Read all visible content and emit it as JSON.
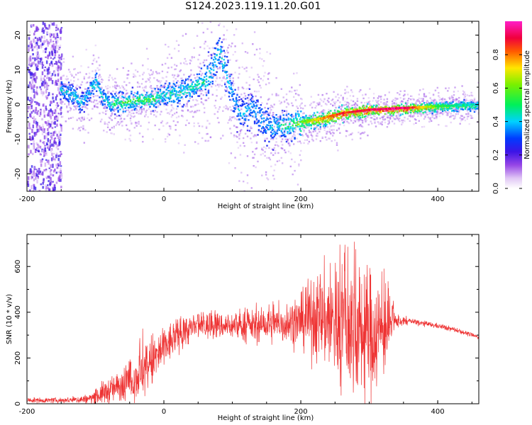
{
  "title": "S124.2023.119.11.20.G01",
  "colors": {
    "snr_line": "#ee3333",
    "axis": "#000000",
    "background": "#ffffff"
  },
  "chart_data": [
    {
      "type": "heatmap",
      "xlabel": "Height of straight line (km)",
      "ylabel": "Frequency (Hz)",
      "xlim": [
        -200,
        460
      ],
      "ylim": [
        -25,
        24
      ],
      "x_ticks": [
        -200,
        0,
        200,
        400
      ],
      "y_ticks": [
        20,
        10,
        0,
        -10,
        -20
      ],
      "colorbar": {
        "label": "Normalized spectral amplitude",
        "range": [
          0,
          1
        ],
        "ticks": [
          "0.0",
          "0.2",
          "0.4",
          "0.6",
          "0.8"
        ],
        "colormap": "white-violet-blue-cyan-green-yellow-red-pink"
      },
      "ridge": {
        "x": [
          -150,
          -130,
          -120,
          -110,
          -100,
          -90,
          -80,
          -60,
          -40,
          -20,
          0,
          20,
          40,
          60,
          70,
          80,
          90,
          100,
          110,
          130,
          150,
          180,
          200,
          230,
          260,
          300,
          350,
          400,
          460
        ],
        "y": [
          4.5,
          2.5,
          0.5,
          4,
          7,
          2,
          0.5,
          0.8,
          1.5,
          1.5,
          3,
          3.5,
          5,
          7,
          10,
          16,
          9,
          3,
          -3,
          -1,
          -6,
          -6,
          -5,
          -4,
          -2.5,
          -1.5,
          -1,
          -0.5,
          0
        ],
        "amplitude": [
          0.3,
          0.3,
          0.3,
          0.3,
          0.35,
          0.3,
          0.35,
          0.45,
          0.45,
          0.45,
          0.35,
          0.35,
          0.35,
          0.35,
          0.3,
          0.3,
          0.3,
          0.25,
          0.25,
          0.25,
          0.25,
          0.4,
          0.55,
          0.75,
          0.85,
          0.9,
          0.95,
          0.55,
          0.4
        ]
      },
      "noise_band": {
        "x_range": [
          -200,
          -150
        ],
        "note_type": "broadband scatter"
      }
    },
    {
      "type": "line",
      "xlabel": "Height of straight line (km)",
      "ylabel": "SNR (10 * v/v)",
      "xlim": [
        -200,
        460
      ],
      "ylim": [
        0,
        740
      ],
      "x_ticks": [
        -200,
        0,
        200,
        400
      ],
      "y_ticks": [
        0,
        200,
        400,
        600
      ],
      "envelope": {
        "x": [
          -200,
          -150,
          -110,
          -90,
          -60,
          -40,
          -30,
          -20,
          0,
          20,
          40,
          60,
          100,
          140,
          180,
          200,
          230,
          260,
          300,
          320,
          340,
          360,
          400,
          430,
          460
        ],
        "mean": [
          15,
          15,
          20,
          45,
          80,
          120,
          140,
          175,
          240,
          300,
          330,
          340,
          340,
          340,
          350,
          360,
          380,
          340,
          300,
          320,
          360,
          360,
          340,
          320,
          290
        ],
        "amp": [
          8,
          8,
          15,
          35,
          50,
          70,
          80,
          90,
          70,
          50,
          45,
          40,
          40,
          50,
          60,
          80,
          150,
          200,
          210,
          150,
          20,
          10,
          8,
          8,
          6
        ],
        "peak": [
          20,
          20,
          30,
          100,
          150,
          250,
          360,
          280,
          340,
          380,
          400,
          420,
          420,
          450,
          460,
          500,
          600,
          740,
          740,
          620,
          400,
          370,
          350,
          330,
          300
        ]
      }
    }
  ]
}
